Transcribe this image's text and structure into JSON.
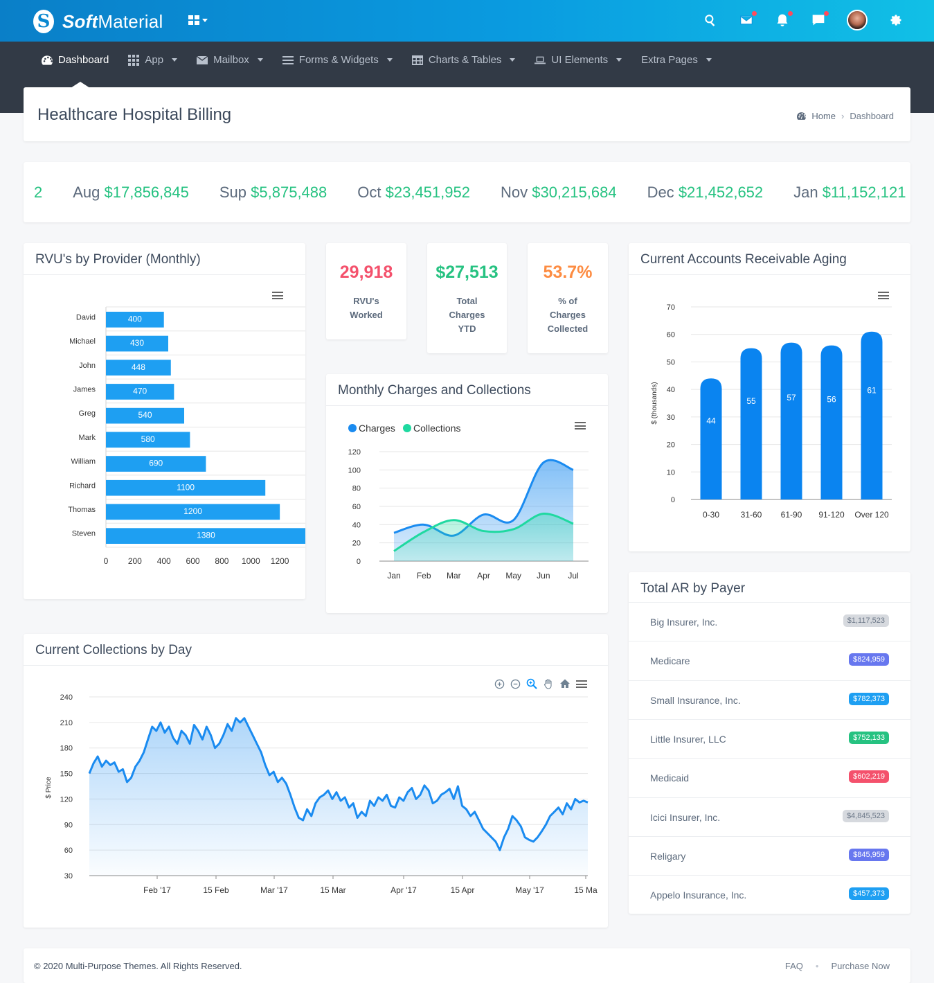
{
  "brand": {
    "logo_letter": "S",
    "name_bold": "Soft",
    "name_rest": "Material"
  },
  "topbar": {
    "icons": [
      "search-icon",
      "mail-icon",
      "bell-icon",
      "chat-icon",
      "avatar",
      "gear-icon"
    ]
  },
  "nav": {
    "items": [
      {
        "label": "Dashboard",
        "icon": "dashboard-icon",
        "active": true,
        "caret": false
      },
      {
        "label": "App",
        "icon": "grid-icon",
        "active": false,
        "caret": true
      },
      {
        "label": "Mailbox",
        "icon": "mail-icon",
        "active": false,
        "caret": true
      },
      {
        "label": "Forms & Widgets",
        "icon": "list-icon",
        "active": false,
        "caret": true
      },
      {
        "label": "Charts & Tables",
        "icon": "table-icon",
        "active": false,
        "caret": true
      },
      {
        "label": "UI Elements",
        "icon": "laptop-icon",
        "active": false,
        "caret": true
      },
      {
        "label": "Extra Pages",
        "icon": "",
        "active": false,
        "caret": true
      }
    ]
  },
  "page": {
    "title": "Healthcare Hospital Billing",
    "breadcrumb_home": "Home",
    "breadcrumb_sep": "›",
    "breadcrumb_current": "Dashboard"
  },
  "ticker": {
    "items": [
      {
        "month": "",
        "value": "2"
      },
      {
        "month": "Aug",
        "value": "$17,856,845"
      },
      {
        "month": "Sup",
        "value": "$5,875,488"
      },
      {
        "month": "Oct",
        "value": "$23,451,952"
      },
      {
        "month": "Nov",
        "value": "$30,215,684"
      },
      {
        "month": "Dec",
        "value": "$21,452,652"
      },
      {
        "month": "Jan",
        "value": "$11,152,121"
      }
    ]
  },
  "stats": [
    {
      "value": "29,918",
      "label": "RVU's Worked",
      "color": "#f4516c"
    },
    {
      "value": "$27,513",
      "label": "Total Charges YTD",
      "color": "#26c281"
    },
    {
      "value": "53.7%",
      "label": "% of Charges Collected",
      "color": "#fd8c42"
    }
  ],
  "cards": {
    "rvu_title": "RVU's by Provider (Monthly)",
    "monthly_title": "Monthly Charges and Collections",
    "aging_title": "Current Accounts Receivable Aging",
    "payer_title": "Total AR by Payer",
    "collections_title": "Current Collections by Day"
  },
  "payers": [
    {
      "name": "Big Insurer, Inc.",
      "amount": "$1,117,523",
      "color": "#d6d9de",
      "text_color": "#6c7888"
    },
    {
      "name": "Medicare",
      "amount": "$824,959",
      "color": "#6777ef",
      "text_color": "#ffffff"
    },
    {
      "name": "Small Insurance, Inc.",
      "amount": "$782,373",
      "color": "#1e9ff2",
      "text_color": "#ffffff"
    },
    {
      "name": "Little Insurer, LLC",
      "amount": "$752,133",
      "color": "#26c281",
      "text_color": "#ffffff"
    },
    {
      "name": "Medicaid",
      "amount": "$602,219",
      "color": "#f4516c",
      "text_color": "#ffffff"
    },
    {
      "name": "Icici Insurer, Inc.",
      "amount": "$4,845,523",
      "color": "#d6d9de",
      "text_color": "#6c7888"
    },
    {
      "name": "Religary",
      "amount": "$845,959",
      "color": "#6777ef",
      "text_color": "#ffffff"
    },
    {
      "name": "Appelo Insurance, Inc.",
      "amount": "$457,373",
      "color": "#1e9ff2",
      "text_color": "#ffffff"
    }
  ],
  "footer": {
    "copyright": "© 2020 Multi-Purpose Themes. All Rights Reserved.",
    "faq": "FAQ",
    "bullet": "•",
    "purchase": "Purchase Now"
  },
  "colors": {
    "bar_blue": "#1e9ff2",
    "aging_blue": "#0a84f0",
    "charges": "#1a8bf0",
    "collections": "#1fd9a0",
    "price_line": "#1a8bf0"
  },
  "chart_data": [
    {
      "id": "rvu",
      "type": "bar",
      "orientation": "horizontal",
      "categories": [
        "David",
        "Michael",
        "John",
        "James",
        "Greg",
        "Mark",
        "William",
        "Richard",
        "Thomas",
        "Steven"
      ],
      "values": [
        400,
        430,
        448,
        470,
        540,
        580,
        690,
        1100,
        1200,
        1380
      ],
      "xlim": [
        0,
        1400
      ],
      "xticks": [
        0,
        200,
        400,
        600,
        800,
        1000,
        1200
      ],
      "data_labels": true
    },
    {
      "id": "monthly",
      "type": "area",
      "categories": [
        "Jan",
        "Feb",
        "Mar",
        "Apr",
        "May",
        "Jun",
        "Jul"
      ],
      "series": [
        {
          "name": "Charges",
          "values": [
            31,
            40,
            28,
            51,
            45,
            108,
            100
          ]
        },
        {
          "name": "Collections",
          "values": [
            11,
            32,
            45,
            33,
            35,
            52,
            41
          ]
        }
      ],
      "ylim": [
        0,
        120
      ],
      "yticks": [
        0,
        20,
        40,
        60,
        80,
        100,
        120
      ],
      "legend": "top-left"
    },
    {
      "id": "aging",
      "type": "bar",
      "categories": [
        "0-30",
        "31-60",
        "61-90",
        "91-120",
        "Over 120"
      ],
      "values": [
        44,
        55,
        57,
        56,
        61
      ],
      "ylabel": "$ (thousands)",
      "ylim": [
        0,
        70
      ],
      "yticks": [
        0,
        10,
        20,
        30,
        40,
        50,
        60,
        70
      ],
      "data_labels": true
    },
    {
      "id": "collections",
      "type": "area",
      "ylabel": "$ Price",
      "ylim": [
        30,
        240
      ],
      "yticks": [
        30,
        60,
        90,
        120,
        150,
        180,
        210,
        240
      ],
      "xtick_labels": [
        "Feb '17",
        "15 Feb",
        "Mar '17",
        "15 Mar",
        "Apr '17",
        "15 Apr",
        "May '17",
        "15 Ma"
      ],
      "x": [
        0,
        1,
        2,
        3,
        4,
        5,
        6,
        7,
        8,
        9,
        10,
        11,
        12,
        13,
        14,
        15,
        16,
        17,
        18,
        19,
        20,
        21,
        22,
        23,
        24,
        25,
        26,
        27,
        28,
        29,
        30,
        31,
        32,
        33,
        34,
        35,
        36,
        37,
        38,
        39,
        40,
        41,
        42,
        43,
        44,
        45,
        46,
        47,
        48,
        49,
        50,
        51,
        52,
        53,
        54,
        55,
        56,
        57,
        58,
        59,
        60,
        61,
        62,
        63,
        64,
        65,
        66,
        67,
        68,
        69,
        70,
        71,
        72,
        73,
        74,
        75,
        76,
        77,
        78,
        79,
        80,
        81,
        82,
        83,
        84,
        85,
        86,
        87,
        88,
        89,
        90,
        91,
        92,
        93,
        94,
        95,
        96,
        97,
        98,
        99,
        100,
        101,
        102,
        103,
        104,
        105,
        106,
        107,
        108,
        109,
        110,
        111,
        112,
        113,
        114,
        115,
        116,
        117,
        118,
        119
      ],
      "values": [
        150,
        162,
        170,
        158,
        165,
        160,
        163,
        152,
        155,
        140,
        145,
        158,
        165,
        175,
        190,
        205,
        200,
        210,
        198,
        205,
        192,
        185,
        200,
        195,
        185,
        207,
        200,
        190,
        205,
        195,
        180,
        185,
        195,
        208,
        200,
        215,
        210,
        215,
        205,
        195,
        185,
        175,
        160,
        148,
        152,
        140,
        145,
        138,
        125,
        110,
        98,
        95,
        108,
        100,
        115,
        122,
        125,
        130,
        120,
        128,
        118,
        122,
        110,
        115,
        98,
        105,
        100,
        118,
        112,
        122,
        118,
        125,
        112,
        110,
        122,
        118,
        128,
        133,
        120,
        125,
        136,
        130,
        115,
        118,
        125,
        128,
        132,
        120,
        135,
        112,
        108,
        100,
        105,
        95,
        85,
        80,
        75,
        70,
        60,
        75,
        85,
        100,
        95,
        88,
        75,
        72,
        70,
        75,
        82,
        90,
        100,
        105,
        110,
        102,
        115,
        108,
        120,
        116,
        118,
        116
      ]
    }
  ]
}
